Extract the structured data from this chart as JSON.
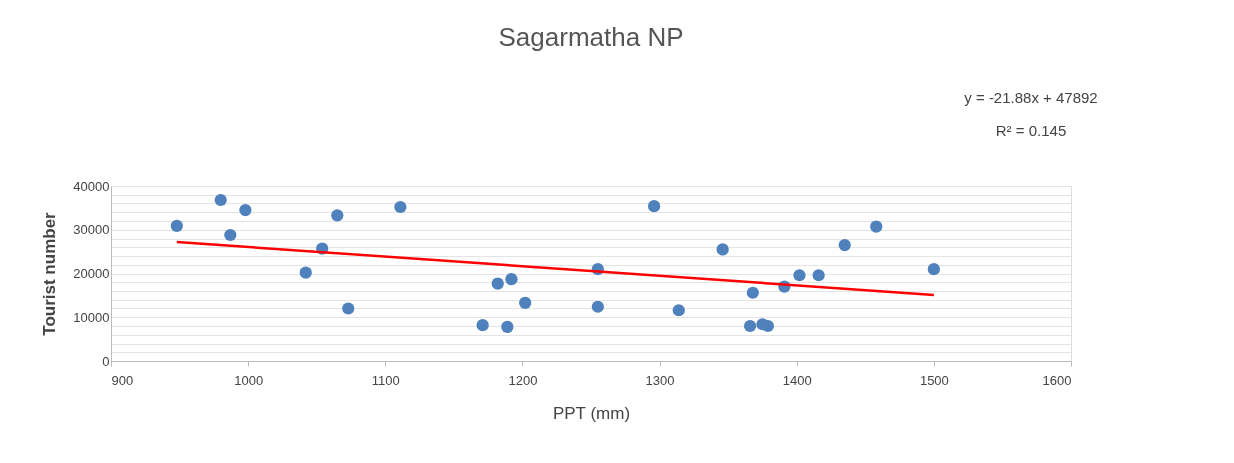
{
  "chart_data": {
    "type": "scatter",
    "title": "Sagarmatha NP",
    "xlabel": "PPT (mm)",
    "ylabel": "Tourist number",
    "annotations": [
      "y = -21.88x  + 47892",
      "R² = 0.145"
    ],
    "xlim": [
      900,
      1600
    ],
    "xticks": [
      900,
      1000,
      1100,
      1200,
      1300,
      1400,
      1500,
      1600
    ],
    "ylim": [
      0,
      40000
    ],
    "yticks": [
      0,
      {
        "value": 2000,
        "label": null
      },
      {
        "value": 4000,
        "label": null
      },
      {
        "value": 6000,
        "label": null
      },
      {
        "value": 8000,
        "label": null
      },
      10000,
      {
        "value": 12000,
        "label": null
      },
      {
        "value": 14000,
        "label": null
      },
      {
        "value": 16000,
        "label": null
      },
      {
        "value": 18000,
        "label": null
      },
      20000,
      {
        "value": 22000,
        "label": null
      },
      {
        "value": 24000,
        "label": null
      },
      {
        "value": 26000,
        "label": null
      },
      {
        "value": 28000,
        "label": null
      },
      30000,
      {
        "value": 32000,
        "label": null
      },
      {
        "value": 34000,
        "label": null
      },
      {
        "value": 36000,
        "label": null
      },
      {
        "value": 38000,
        "label": null
      },
      40000
    ],
    "grid": "y",
    "series": [
      {
        "color": "#4f81bd",
        "marker": "circle",
        "x": [
          948,
          980,
          998,
          987,
          1042,
          1054,
          1065,
          1073,
          1111,
          1171,
          1182,
          1192,
          1189,
          1202,
          1255,
          1255,
          1296,
          1314,
          1346,
          1368,
          1366,
          1375,
          1379,
          1391,
          1402,
          1416,
          1435,
          1458,
          1500
        ],
        "values": [
          30900,
          36800,
          34500,
          28800,
          20200,
          25700,
          33300,
          12000,
          35200,
          8200,
          17700,
          18700,
          7800,
          13300,
          21000,
          12400,
          35400,
          11600,
          25500,
          15600,
          8000,
          8400,
          8000,
          17000,
          19600,
          19600,
          26500,
          30700,
          21000
        ]
      },
      {
        "type": "line",
        "color": "#ff0000",
        "x": [
          948,
          1500
        ],
        "values": [
          27200,
          15100
        ],
        "line_style": "solid"
      }
    ]
  }
}
